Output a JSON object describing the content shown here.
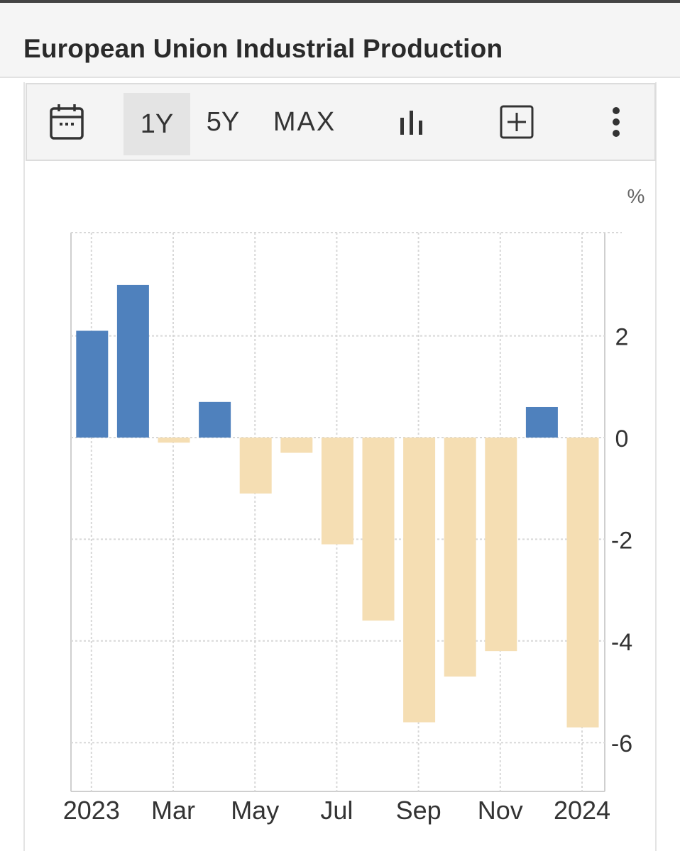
{
  "header": {
    "title": "European Union Industrial Production"
  },
  "toolbar": {
    "calendar_icon": "calendar-icon",
    "ranges": [
      "1Y",
      "5Y",
      "MAX"
    ],
    "active_range": "1Y",
    "chart_type_icon": "bar-chart-icon",
    "add_icon": "plus-square-icon",
    "menu_icon": "more-vertical-icon"
  },
  "colors": {
    "positive": "#4f81bd",
    "negative": "#f5deb3",
    "grid": "#d8d8d8"
  },
  "chart_data": {
    "type": "bar",
    "unit": "%",
    "x_ticks": [
      "2023",
      "Mar",
      "May",
      "Jul",
      "Sep",
      "Nov",
      "2024"
    ],
    "categories": [
      "Jan 2023",
      "Feb 2023",
      "Mar 2023",
      "Apr 2023",
      "May 2023",
      "Jun 2023",
      "Jul 2023",
      "Aug 2023",
      "Sep 2023",
      "Oct 2023",
      "Nov 2023",
      "Dec 2023",
      "Jan 2024"
    ],
    "values": [
      2.1,
      3.0,
      -0.1,
      0.7,
      -1.1,
      -0.3,
      -2.1,
      -3.6,
      -5.6,
      -4.7,
      -4.2,
      0.6,
      -5.7
    ],
    "y_ticks": [
      2,
      0,
      -2,
      -4,
      -6
    ],
    "ylim": [
      -7,
      4
    ],
    "grid": true,
    "legend": "none"
  }
}
